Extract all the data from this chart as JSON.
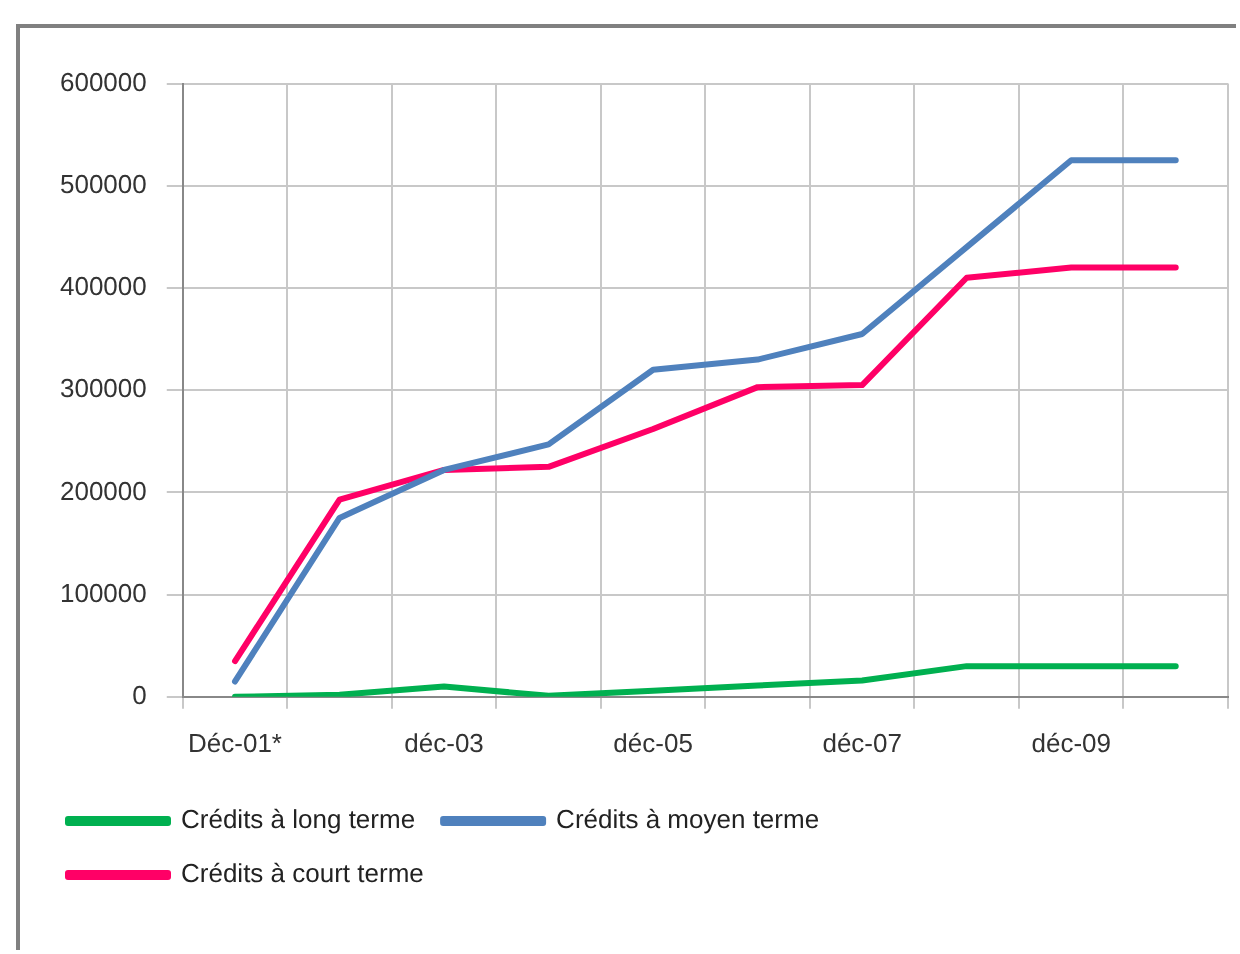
{
  "chart_data": {
    "type": "line",
    "categories": [
      "Déc-01*",
      null,
      "déc-03",
      null,
      "déc-05",
      null,
      "déc-07",
      null,
      "déc-09",
      null
    ],
    "series": [
      {
        "name": "Crédits à long terme",
        "color": "#00b050",
        "values": [
          0,
          2000,
          10000,
          1000,
          6000,
          11000,
          16000,
          30000,
          30000,
          30000
        ]
      },
      {
        "name": "Crédits à moyen terme",
        "color": "#4f81bd",
        "values": [
          15000,
          175000,
          222000,
          247000,
          320000,
          330000,
          355000,
          440000,
          525000,
          525000
        ]
      },
      {
        "name": "Crédits à court terme",
        "color": "#ff0066",
        "values": [
          35000,
          193000,
          222000,
          225000,
          262000,
          303000,
          305000,
          410000,
          420000,
          420000
        ]
      }
    ],
    "ylim": [
      0,
      600000
    ],
    "yticks": [
      0,
      100000,
      200000,
      300000,
      400000,
      500000,
      600000
    ],
    "grid": true,
    "legend": "bottom",
    "marker": "none",
    "line_style": "solid"
  }
}
